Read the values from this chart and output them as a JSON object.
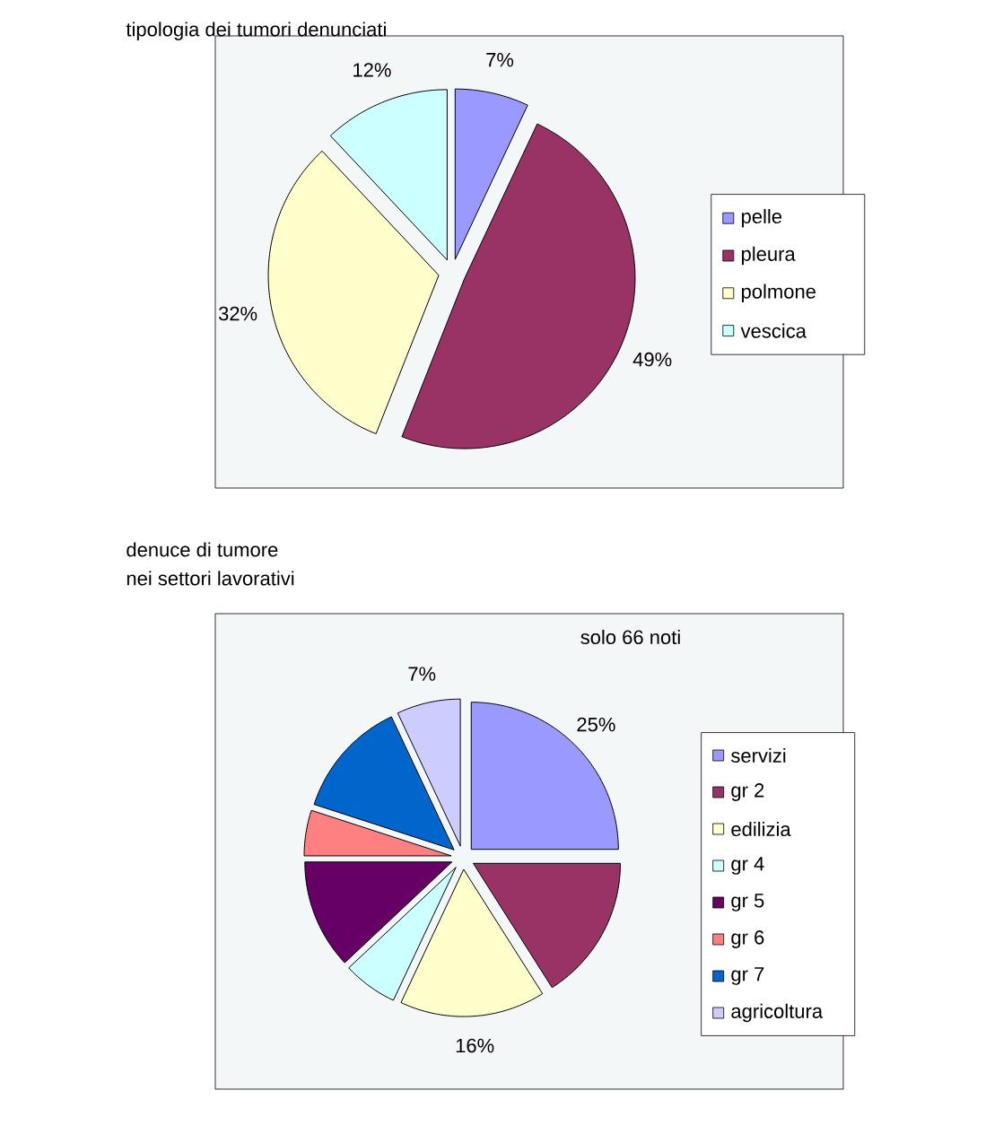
{
  "chart_data": [
    {
      "type": "pie",
      "title": "tipologia dei tumori denunciati",
      "categories": [
        "pelle",
        "pleura",
        "polmone",
        "vescica"
      ],
      "values": [
        7,
        49,
        32,
        12
      ],
      "colors": [
        "#9999ff",
        "#993366",
        "#ffffcc",
        "#ccffff"
      ],
      "value_labels": [
        "7%",
        "49%",
        "32%",
        "12%"
      ],
      "legend": "right"
    },
    {
      "type": "pie",
      "title": "denuce di tumore",
      "subtitle": "nei settori lavorativi",
      "categories": [
        "servizi",
        "gr 2",
        "edilizia",
        "gr 4",
        "gr 5",
        "gr 6",
        "gr 7",
        "agricoltura"
      ],
      "values": [
        25,
        16,
        16,
        6,
        12,
        5,
        13,
        7
      ],
      "colors": [
        "#9999ff",
        "#993366",
        "#ffffcc",
        "#ccffff",
        "#660066",
        "#ff8080",
        "#0066cc",
        "#ccccff"
      ],
      "value_labels": [
        "25%",
        null,
        "16%",
        null,
        null,
        null,
        null,
        "7%"
      ],
      "legend": "right",
      "annotations": [
        "solo 66 noti"
      ]
    }
  ]
}
